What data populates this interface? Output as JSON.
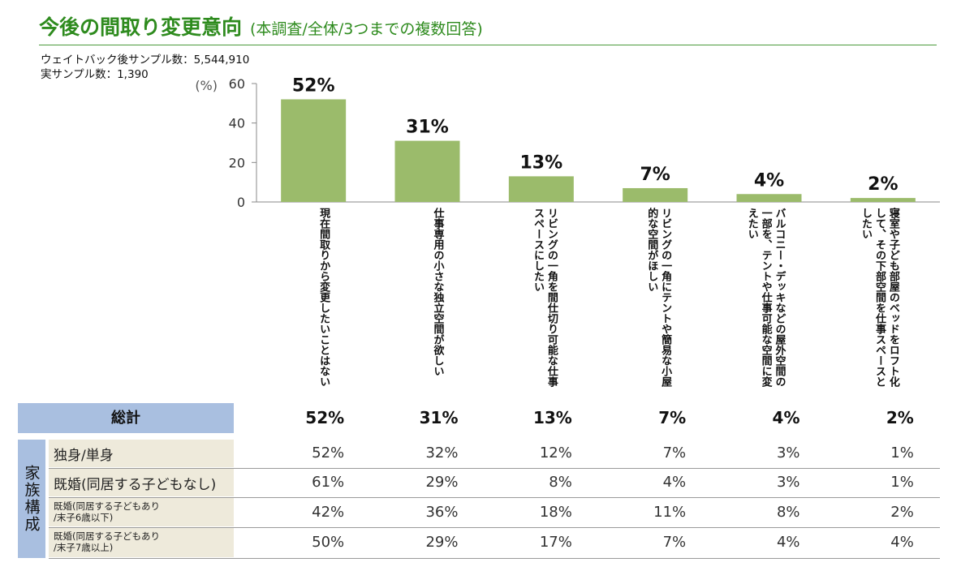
{
  "title": {
    "main": "今後の間取り変更意向",
    "sub": "(本調査/全体/3つまでの複数回答)"
  },
  "sample": {
    "weighted": "ウェイトバック後サンプル数：5,544,910",
    "actual": "実サンプル数：1,390"
  },
  "chart_data": {
    "type": "bar",
    "title": "今後の間取り変更意向",
    "ylabel": "(%)",
    "ylim": [
      0,
      60
    ],
    "yticks": [
      0,
      20,
      40,
      60
    ],
    "categories": [
      "現在間取りから変更したいことはない",
      "仕事専用の小さな独立空間が欲しい",
      "リビングの一角を間仕切り可能な仕事スペースにしたい",
      "リビングの一角にテントや簡易な小屋的な空間がほしい",
      "バルコニー・デッキなどの屋外空間の一部を、テントや仕事可能な空間に変えたい",
      "寝室や子ども部屋のベッドをロフト化して、その下部空間を仕事スペースとしたい"
    ],
    "values": [
      52,
      31,
      13,
      7,
      4,
      2
    ],
    "value_labels": [
      "52%",
      "31%",
      "13%",
      "7%",
      "4%",
      "2%"
    ],
    "bar_color": "#9bbb6b"
  },
  "table": {
    "total_label": "総計",
    "total_values": [
      "52%",
      "31%",
      "13%",
      "7%",
      "4%",
      "2%"
    ],
    "group_label": "家族構成",
    "rows": [
      {
        "label": "独身/単身",
        "values": [
          "52%",
          "32%",
          "12%",
          "7%",
          "3%",
          "1%"
        ]
      },
      {
        "label": "既婚(同居する子どもなし)",
        "values": [
          "61%",
          "29%",
          "8%",
          "4%",
          "3%",
          "1%"
        ]
      },
      {
        "label": "既婚(同居する子どもあり\n/末子6歳以下)",
        "values": [
          "42%",
          "36%",
          "18%",
          "11%",
          "8%",
          "2%"
        ]
      },
      {
        "label": "既婚(同居する子どもあり\n/末子7歳以上)",
        "values": [
          "50%",
          "29%",
          "17%",
          "7%",
          "4%",
          "4%"
        ]
      }
    ]
  }
}
